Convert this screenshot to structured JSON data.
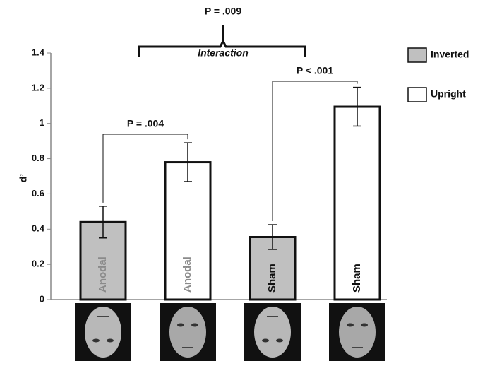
{
  "chart_data": {
    "type": "bar",
    "categories": [
      "Anodal",
      "Sham"
    ],
    "series": [
      {
        "name": "Inverted",
        "color": "#c0c0c0",
        "values": [
          0.44,
          0.355
        ],
        "errors": [
          0.09,
          0.07
        ]
      },
      {
        "name": "Upright",
        "color": "#ffffff",
        "values": [
          0.78,
          1.095
        ],
        "errors": [
          0.11,
          0.11
        ]
      }
    ],
    "y_label": "d’",
    "ylim": [
      0,
      1.4
    ],
    "yticks": [
      0,
      0.2,
      0.4,
      0.6,
      0.8,
      1,
      1.2,
      1.4
    ],
    "annotations": [
      "P = .009",
      "Interaction",
      "P = .004",
      "P < .001"
    ],
    "legend": "right"
  }
}
